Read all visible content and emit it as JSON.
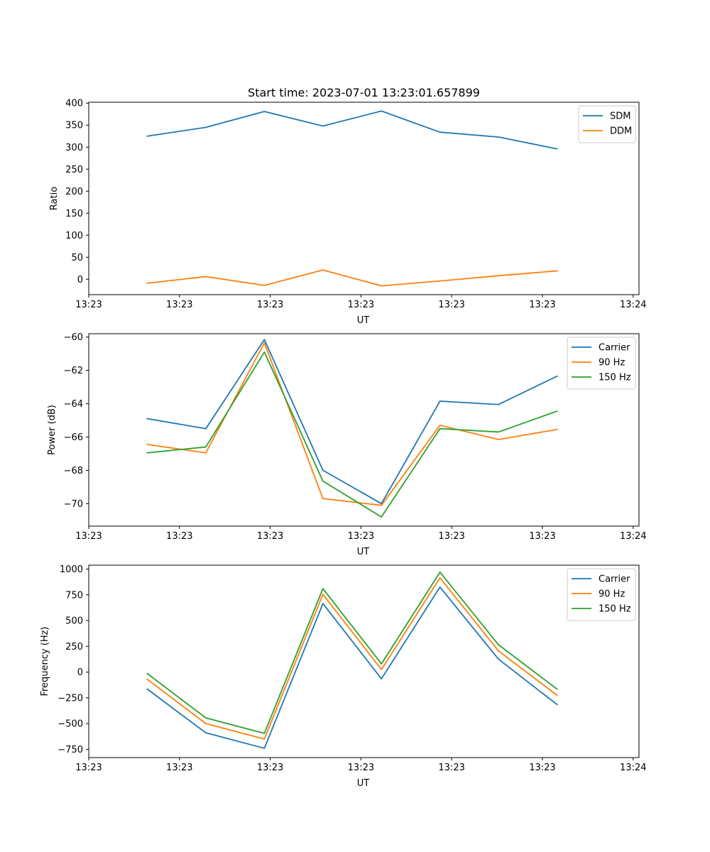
{
  "chart_data": [
    {
      "type": "line",
      "title": "Start time: 2023-07-01 13:23:01.657899",
      "xlabel": "UT",
      "ylabel": "Ratio",
      "x": [
        1,
        2,
        3,
        4,
        5,
        6,
        7,
        8
      ],
      "xlim": [
        0,
        9.4
      ],
      "x_ticks": [
        0,
        1.55,
        3.1,
        4.65,
        6.2,
        7.75,
        9.3
      ],
      "x_tick_labels": [
        "13:23",
        "13:23",
        "13:23",
        "13:23",
        "13:23",
        "13:23",
        "13:24"
      ],
      "ylim": [
        -35,
        402
      ],
      "y_ticks": [
        0,
        50,
        100,
        150,
        200,
        250,
        300,
        350,
        400
      ],
      "y_tick_labels": [
        "0",
        "50",
        "100",
        "150",
        "200",
        "250",
        "300",
        "350",
        "400"
      ],
      "legend_position": "top-right",
      "series": [
        {
          "name": "SDM",
          "color": "#1f77b4",
          "values": [
            325,
            345,
            381,
            348,
            382,
            334,
            323,
            296
          ]
        },
        {
          "name": "DDM",
          "color": "#ff7f0e",
          "values": [
            -9,
            6,
            -14,
            21,
            -15,
            -4,
            8,
            19
          ]
        }
      ]
    },
    {
      "type": "line",
      "title": "",
      "xlabel": "UT",
      "ylabel": "Power (dB)",
      "x": [
        1,
        2,
        3,
        4,
        5,
        6,
        7,
        8
      ],
      "xlim": [
        0,
        9.4
      ],
      "x_ticks": [
        0,
        1.55,
        3.1,
        4.65,
        6.2,
        7.75,
        9.3
      ],
      "x_tick_labels": [
        "13:23",
        "13:23",
        "13:23",
        "13:23",
        "13:23",
        "13:23",
        "13:24"
      ],
      "ylim": [
        -71.35,
        -59.8
      ],
      "y_ticks": [
        -70,
        -68,
        -66,
        -64,
        -62,
        -60
      ],
      "y_tick_labels": [
        "−70",
        "−68",
        "−66",
        "−64",
        "−62",
        "−60"
      ],
      "legend_position": "top-right",
      "series": [
        {
          "name": "Carrier",
          "color": "#1f77b4",
          "values": [
            -64.9,
            -65.5,
            -60.15,
            -68.0,
            -70.0,
            -63.85,
            -64.05,
            -62.35
          ]
        },
        {
          "name": "90 Hz",
          "color": "#ff7f0e",
          "values": [
            -66.45,
            -66.95,
            -60.35,
            -69.7,
            -70.1,
            -65.3,
            -66.15,
            -65.55
          ]
        },
        {
          "name": "150 Hz",
          "color": "#2ca02c",
          "values": [
            -66.95,
            -66.6,
            -60.9,
            -68.65,
            -70.8,
            -65.5,
            -65.7,
            -64.45
          ]
        }
      ]
    },
    {
      "type": "line",
      "title": "",
      "xlabel": "UT",
      "ylabel": "Frequency (Hz)",
      "x": [
        1,
        2,
        3,
        4,
        5,
        6,
        7,
        8
      ],
      "xlim": [
        0,
        9.4
      ],
      "x_ticks": [
        0,
        1.55,
        3.1,
        4.65,
        6.2,
        7.75,
        9.3
      ],
      "x_tick_labels": [
        "13:23",
        "13:23",
        "13:23",
        "13:23",
        "13:23",
        "13:23",
        "13:24"
      ],
      "ylim": [
        -830,
        1038
      ],
      "y_ticks": [
        -750,
        -500,
        -250,
        0,
        250,
        500,
        750,
        1000
      ],
      "y_tick_labels": [
        "−750",
        "−500",
        "−250",
        "0",
        "250",
        "500",
        "750",
        "1000"
      ],
      "legend_position": "top-right",
      "series": [
        {
          "name": "Carrier",
          "color": "#1f77b4",
          "values": [
            -165,
            -590,
            -740,
            665,
            -65,
            825,
            125,
            -315
          ]
        },
        {
          "name": "90 Hz",
          "color": "#ff7f0e",
          "values": [
            -70,
            -500,
            -650,
            755,
            25,
            915,
            205,
            -225
          ]
        },
        {
          "name": "150 Hz",
          "color": "#2ca02c",
          "values": [
            -15,
            -445,
            -595,
            810,
            80,
            970,
            265,
            -165
          ]
        }
      ]
    }
  ]
}
